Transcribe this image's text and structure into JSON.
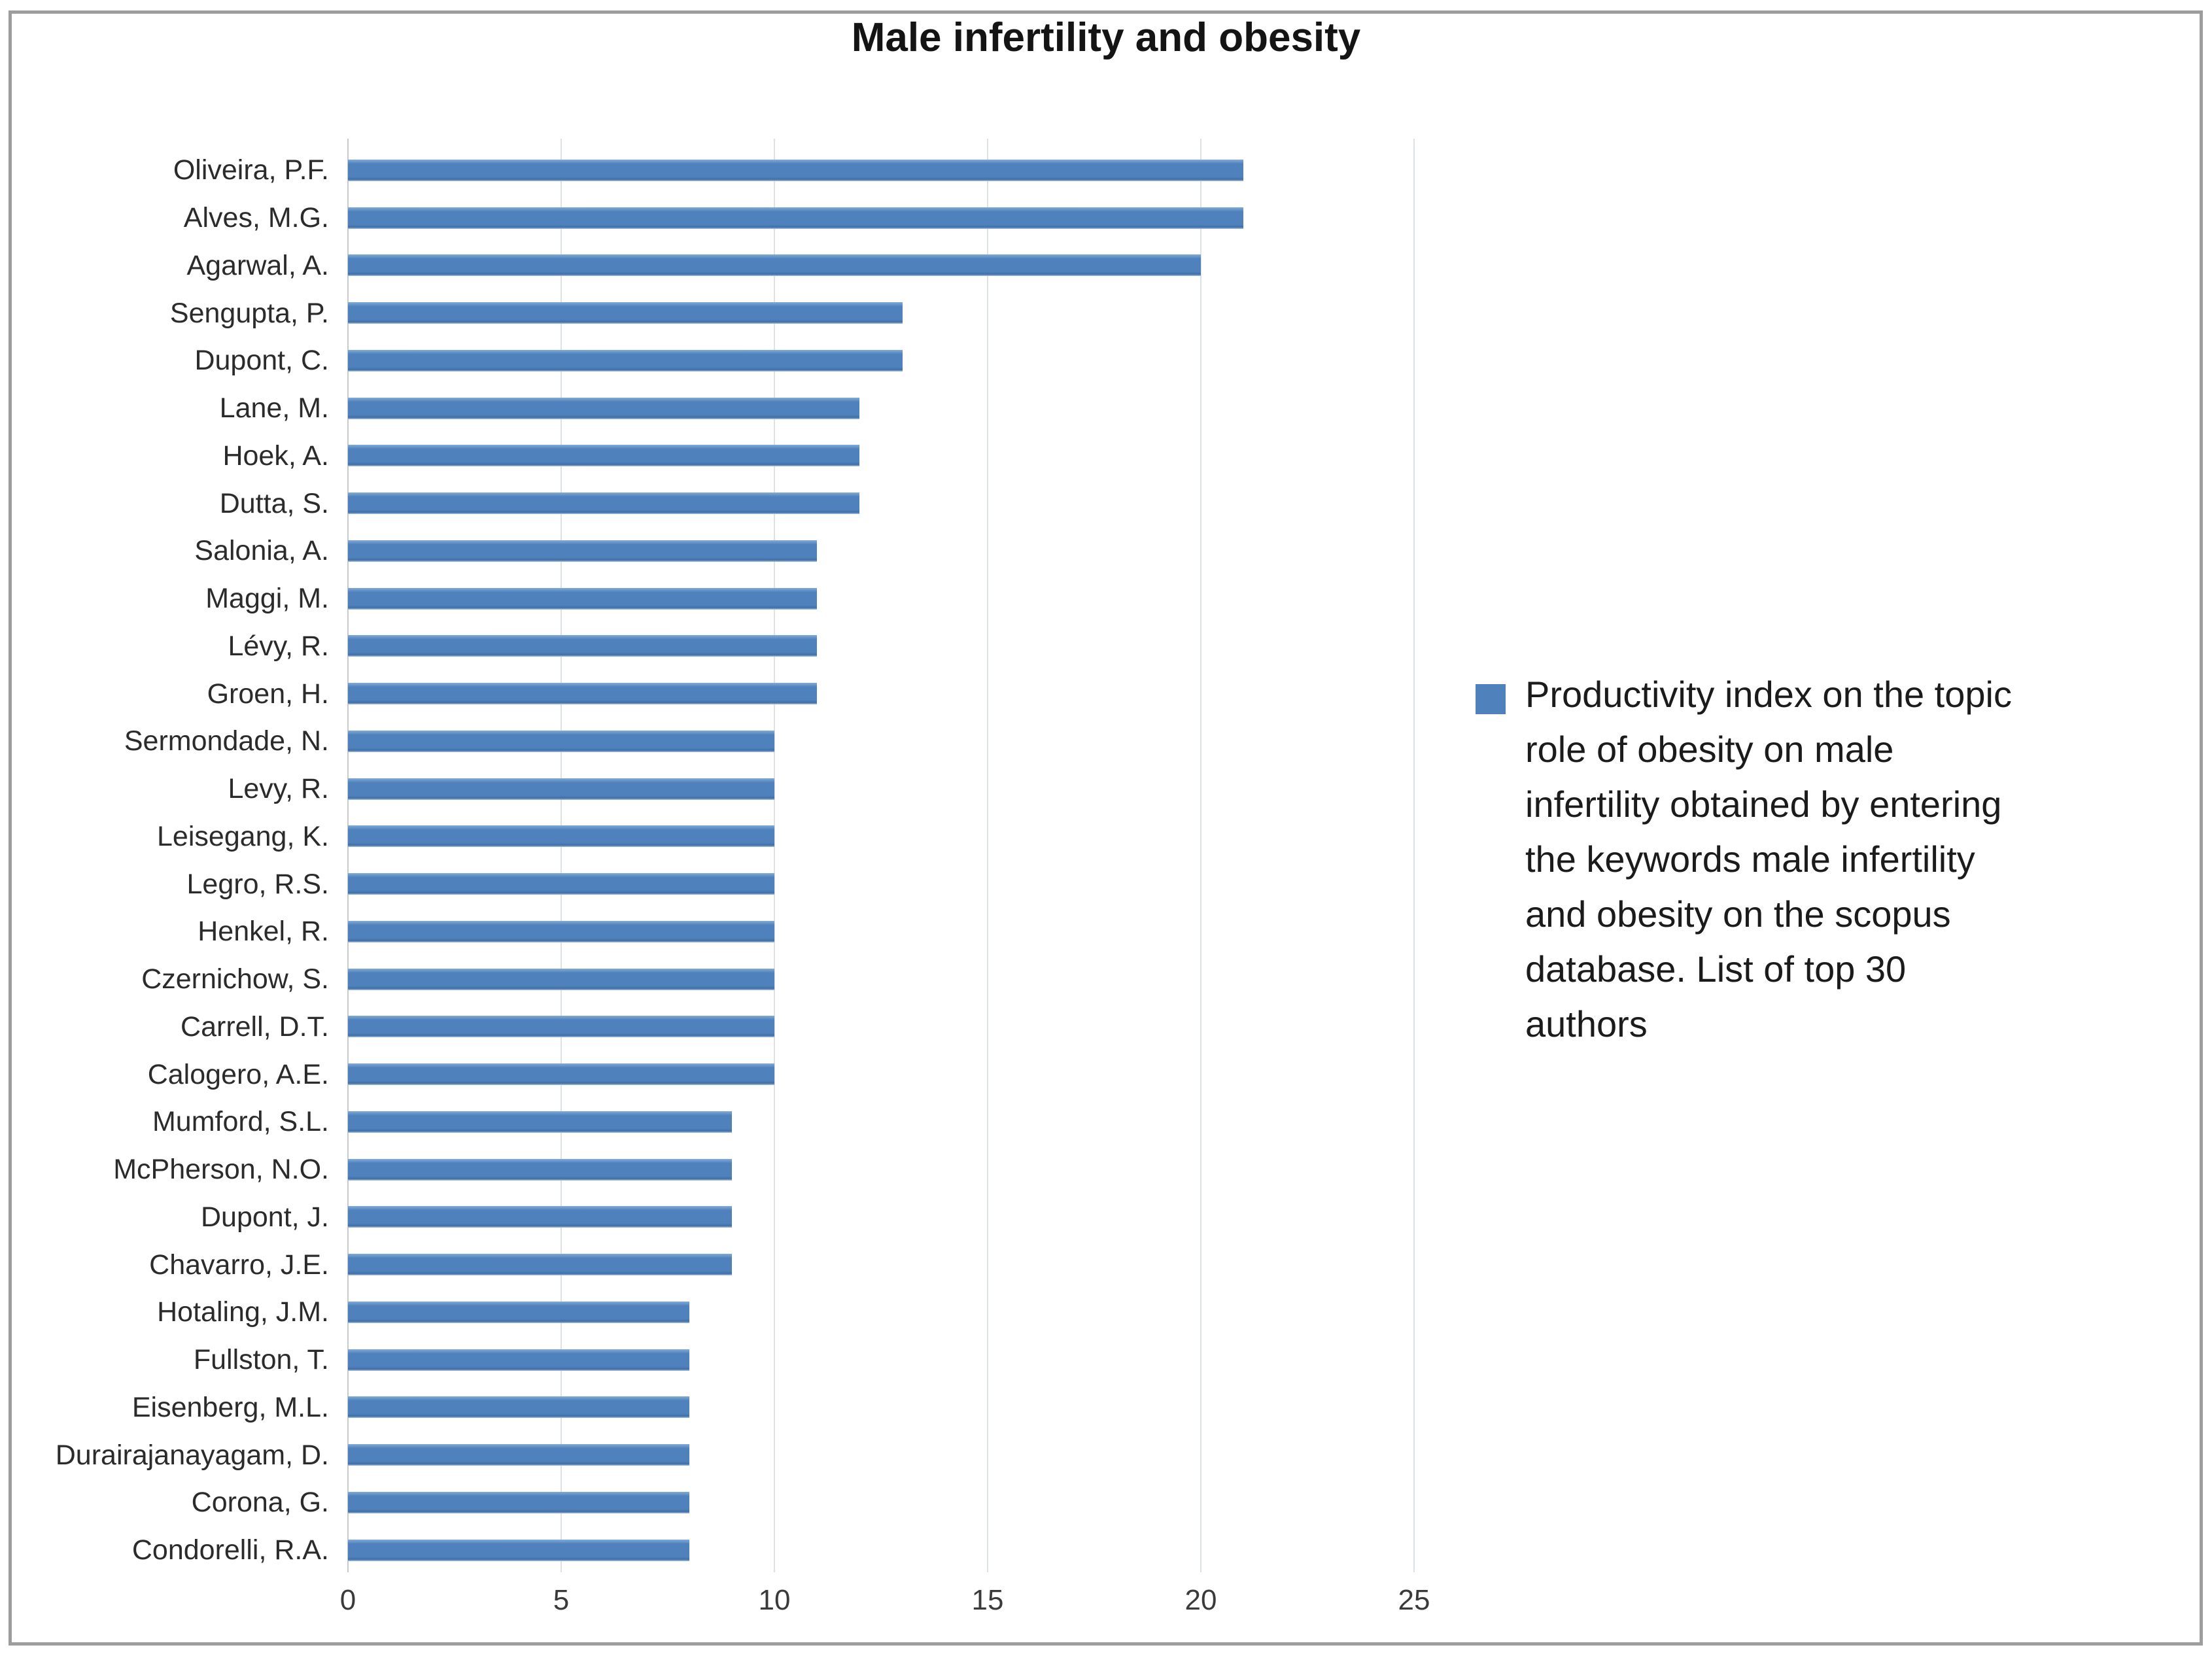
{
  "chart_data": {
    "type": "bar",
    "orientation": "horizontal",
    "title": "Male infertility and obesity",
    "categories": [
      "Oliveira, P.F.",
      "Alves, M.G.",
      "Agarwal, A.",
      "Sengupta, P.",
      "Dupont, C.",
      "Lane, M.",
      "Hoek, A.",
      "Dutta, S.",
      "Salonia, A.",
      "Maggi, M.",
      "Lévy, R.",
      "Groen, H.",
      "Sermondade, N.",
      "Levy, R.",
      "Leisegang, K.",
      "Legro, R.S.",
      "Henkel, R.",
      "Czernichow, S.",
      "Carrell, D.T.",
      "Calogero, A.E.",
      "Mumford, S.L.",
      "McPherson, N.O.",
      "Dupont, J.",
      "Chavarro, J.E.",
      "Hotaling, J.M.",
      "Fullston, T.",
      "Eisenberg, M.L.",
      "Durairajanayagam, D.",
      "Corona, G.",
      "Condorelli, R.A."
    ],
    "values": [
      21,
      21,
      20,
      13,
      13,
      12,
      12,
      12,
      11,
      11,
      11,
      11,
      10,
      10,
      10,
      10,
      10,
      10,
      10,
      10,
      9,
      9,
      9,
      9,
      8,
      8,
      8,
      8,
      8,
      8
    ],
    "x_ticks": [
      0,
      5,
      10,
      15,
      20,
      25
    ],
    "xlim": [
      0,
      25
    ],
    "xlabel": "",
    "ylabel": "",
    "grid": "vertical-light",
    "bar_color": "#4f81bd",
    "legend_position": "right",
    "legend": "Productivity index on the topic\nrole of obesity on male\ninfertility obtained by entering\nthe keywords male infertility\nand obesity on the scopus\ndatabase. List of top 30\nauthors"
  }
}
